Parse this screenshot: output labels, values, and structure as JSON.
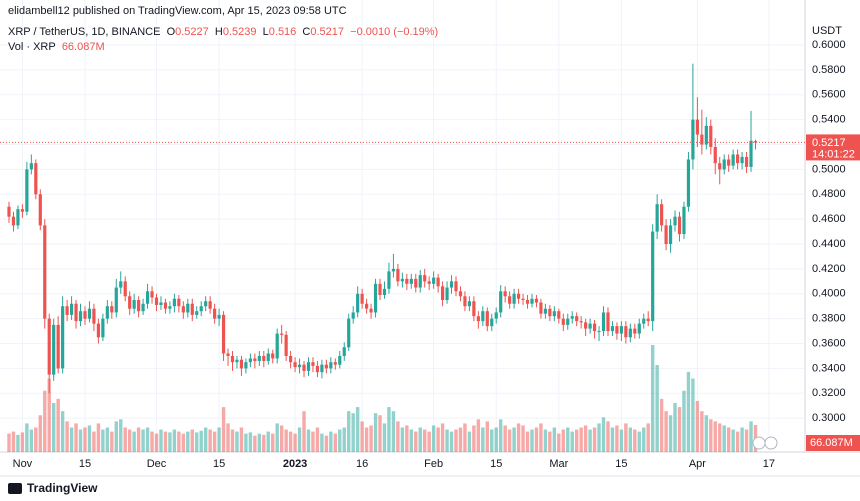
{
  "header": {
    "publisher": "elidambell12 published on TradingView.com, Apr 15, 2023 09:58 UTC",
    "symbol": "XRP / TetherUS, 1D, BINANCE",
    "ohlc_labels": [
      "O",
      "H",
      "L",
      "C"
    ],
    "change": "−0.0010 (−0.19%)",
    "volume_title": "Vol · XRP",
    "volume_label": "66.087M",
    "currency": "USDT",
    "countdown": "14:01:22",
    "brand": "TradingView"
  },
  "chart_data": {
    "type": "candlestick",
    "up_color": "#26a69a",
    "down_color": "#ef5350",
    "grid": true,
    "ylim": [
      0.2728,
      0.6185
    ],
    "yticks": [
      {
        "value": 0.3,
        "label": "0.3000"
      },
      {
        "value": 0.32,
        "label": "0.3200"
      },
      {
        "value": 0.34,
        "label": "0.3400"
      },
      {
        "value": 0.36,
        "label": "0.3600"
      },
      {
        "value": 0.38,
        "label": "0.3800"
      },
      {
        "value": 0.4,
        "label": "0.4000"
      },
      {
        "value": 0.42,
        "label": "0.4200"
      },
      {
        "value": 0.44,
        "label": "0.4400"
      },
      {
        "value": 0.46,
        "label": "0.4600"
      },
      {
        "value": 0.48,
        "label": "0.4800"
      },
      {
        "value": 0.5,
        "label": "0.5000"
      },
      {
        "value": 0.52,
        "label": "0.5200"
      },
      {
        "value": 0.54,
        "label": "0.5400"
      },
      {
        "value": 0.56,
        "label": "0.5600"
      },
      {
        "value": 0.58,
        "label": "0.5800"
      },
      {
        "value": 0.6,
        "label": "0.6000"
      }
    ],
    "xticks": [
      {
        "value": 3,
        "label": "Nov"
      },
      {
        "value": 17,
        "label": "15"
      },
      {
        "value": 33,
        "label": "Dec"
      },
      {
        "value": 47,
        "label": "15"
      },
      {
        "value": 64,
        "label": "2023"
      },
      {
        "value": 79,
        "label": "16"
      },
      {
        "value": 95,
        "label": "Feb"
      },
      {
        "value": 109,
        "label": "15"
      },
      {
        "value": 123,
        "label": "Mar"
      },
      {
        "value": 137,
        "label": "15"
      },
      {
        "value": 154,
        "label": "Apr"
      },
      {
        "value": 170,
        "label": "17"
      }
    ],
    "open": [
      0.47,
      0.462,
      0.455,
      0.468,
      0.466,
      0.5,
      0.505,
      0.48,
      0.455,
      0.38,
      0.335,
      0.375,
      0.34,
      0.39,
      0.383,
      0.392,
      0.378,
      0.386,
      0.38,
      0.388,
      0.376,
      0.365,
      0.38,
      0.39,
      0.385,
      0.405,
      0.41,
      0.398,
      0.388,
      0.395,
      0.386,
      0.392,
      0.402,
      0.397,
      0.391,
      0.393,
      0.388,
      0.39,
      0.396,
      0.39,
      0.385,
      0.392,
      0.383,
      0.386,
      0.39,
      0.394,
      0.388,
      0.38,
      0.383,
      0.352,
      0.35,
      0.345,
      0.347,
      0.34,
      0.345,
      0.348,
      0.346,
      0.35,
      0.346,
      0.352,
      0.348,
      0.368,
      0.367,
      0.35,
      0.345,
      0.341,
      0.343,
      0.338,
      0.345,
      0.342,
      0.337,
      0.343,
      0.34,
      0.345,
      0.343,
      0.35,
      0.357,
      0.38,
      0.385,
      0.4,
      0.392,
      0.388,
      0.385,
      0.408,
      0.399,
      0.404,
      0.418,
      0.42,
      0.41,
      0.412,
      0.408,
      0.412,
      0.405,
      0.415,
      0.41,
      0.408,
      0.413,
      0.406,
      0.395,
      0.405,
      0.41,
      0.402,
      0.398,
      0.39,
      0.394,
      0.382,
      0.378,
      0.386,
      0.374,
      0.38,
      0.385,
      0.402,
      0.398,
      0.392,
      0.4,
      0.396,
      0.395,
      0.392,
      0.396,
      0.393,
      0.384,
      0.388,
      0.382,
      0.386,
      0.38,
      0.375,
      0.38,
      0.382,
      0.378,
      0.377,
      0.372,
      0.376,
      0.37,
      0.37,
      0.385,
      0.37,
      0.374,
      0.368,
      0.374,
      0.365,
      0.372,
      0.368,
      0.376,
      0.38,
      0.378,
      0.45,
      0.472,
      0.455,
      0.44,
      0.455,
      0.462,
      0.448,
      0.47,
      0.508,
      0.54,
      0.528,
      0.52,
      0.535,
      0.518,
      0.505,
      0.5,
      0.508,
      0.503,
      0.512,
      0.505,
      0.51,
      0.502,
      0.5227
    ],
    "high": [
      0.474,
      0.466,
      0.471,
      0.472,
      0.506,
      0.512,
      0.508,
      0.484,
      0.46,
      0.384,
      0.38,
      0.382,
      0.398,
      0.395,
      0.398,
      0.395,
      0.392,
      0.39,
      0.394,
      0.392,
      0.38,
      0.384,
      0.395,
      0.394,
      0.412,
      0.418,
      0.414,
      0.402,
      0.4,
      0.398,
      0.396,
      0.408,
      0.406,
      0.4,
      0.398,
      0.396,
      0.394,
      0.4,
      0.399,
      0.394,
      0.396,
      0.396,
      0.39,
      0.394,
      0.398,
      0.398,
      0.392,
      0.388,
      0.386,
      0.356,
      0.354,
      0.35,
      0.35,
      0.348,
      0.352,
      0.352,
      0.354,
      0.354,
      0.356,
      0.355,
      0.372,
      0.375,
      0.37,
      0.354,
      0.349,
      0.348,
      0.346,
      0.349,
      0.349,
      0.346,
      0.347,
      0.347,
      0.349,
      0.348,
      0.354,
      0.361,
      0.384,
      0.39,
      0.406,
      0.404,
      0.396,
      0.392,
      0.412,
      0.412,
      0.41,
      0.425,
      0.432,
      0.424,
      0.417,
      0.416,
      0.416,
      0.416,
      0.419,
      0.42,
      0.414,
      0.418,
      0.416,
      0.41,
      0.41,
      0.415,
      0.414,
      0.406,
      0.402,
      0.398,
      0.398,
      0.386,
      0.39,
      0.389,
      0.384,
      0.389,
      0.407,
      0.406,
      0.402,
      0.404,
      0.404,
      0.4,
      0.399,
      0.4,
      0.399,
      0.396,
      0.392,
      0.391,
      0.39,
      0.388,
      0.384,
      0.384,
      0.386,
      0.385,
      0.382,
      0.38,
      0.38,
      0.379,
      0.374,
      0.39,
      0.389,
      0.378,
      0.377,
      0.378,
      0.378,
      0.376,
      0.376,
      0.38,
      0.384,
      0.386,
      0.456,
      0.48,
      0.476,
      0.46,
      0.46,
      0.467,
      0.466,
      0.474,
      0.514,
      0.585,
      0.558,
      0.548,
      0.542,
      0.54,
      0.525,
      0.51,
      0.512,
      0.512,
      0.516,
      0.516,
      0.514,
      0.514,
      0.547,
      0.5239
    ],
    "low": [
      0.457,
      0.45,
      0.452,
      0.461,
      0.463,
      0.496,
      0.476,
      0.451,
      0.372,
      0.32,
      0.33,
      0.336,
      0.336,
      0.378,
      0.379,
      0.372,
      0.374,
      0.375,
      0.377,
      0.37,
      0.36,
      0.362,
      0.376,
      0.38,
      0.381,
      0.4,
      0.394,
      0.383,
      0.384,
      0.381,
      0.383,
      0.388,
      0.392,
      0.386,
      0.387,
      0.384,
      0.384,
      0.385,
      0.385,
      0.38,
      0.381,
      0.378,
      0.38,
      0.382,
      0.386,
      0.384,
      0.376,
      0.374,
      0.346,
      0.342,
      0.338,
      0.34,
      0.334,
      0.336,
      0.341,
      0.34,
      0.342,
      0.341,
      0.343,
      0.344,
      0.344,
      0.36,
      0.346,
      0.34,
      0.337,
      0.336,
      0.333,
      0.334,
      0.337,
      0.333,
      0.332,
      0.336,
      0.336,
      0.339,
      0.34,
      0.346,
      0.354,
      0.376,
      0.381,
      0.388,
      0.384,
      0.38,
      0.381,
      0.395,
      0.396,
      0.4,
      0.413,
      0.406,
      0.405,
      0.403,
      0.404,
      0.401,
      0.401,
      0.405,
      0.403,
      0.404,
      0.401,
      0.39,
      0.392,
      0.4,
      0.398,
      0.394,
      0.386,
      0.386,
      0.378,
      0.372,
      0.374,
      0.37,
      0.37,
      0.376,
      0.381,
      0.393,
      0.388,
      0.388,
      0.392,
      0.391,
      0.388,
      0.389,
      0.389,
      0.38,
      0.38,
      0.378,
      0.378,
      0.376,
      0.37,
      0.371,
      0.376,
      0.374,
      0.372,
      0.366,
      0.368,
      0.364,
      0.362,
      0.366,
      0.366,
      0.366,
      0.363,
      0.362,
      0.36,
      0.361,
      0.364,
      0.364,
      0.372,
      0.374,
      0.37,
      0.444,
      0.45,
      0.435,
      0.433,
      0.45,
      0.442,
      0.444,
      0.466,
      0.5,
      0.518,
      0.512,
      0.516,
      0.512,
      0.496,
      0.488,
      0.496,
      0.498,
      0.5,
      0.5,
      0.5,
      0.497,
      0.498,
      0.516
    ],
    "close": [
      0.462,
      0.455,
      0.468,
      0.466,
      0.5,
      0.505,
      0.48,
      0.455,
      0.38,
      0.335,
      0.375,
      0.34,
      0.39,
      0.383,
      0.392,
      0.378,
      0.386,
      0.38,
      0.388,
      0.376,
      0.365,
      0.38,
      0.39,
      0.385,
      0.405,
      0.41,
      0.398,
      0.388,
      0.395,
      0.386,
      0.392,
      0.402,
      0.397,
      0.391,
      0.393,
      0.388,
      0.39,
      0.396,
      0.39,
      0.385,
      0.392,
      0.383,
      0.386,
      0.39,
      0.394,
      0.388,
      0.38,
      0.383,
      0.352,
      0.35,
      0.345,
      0.347,
      0.34,
      0.345,
      0.348,
      0.346,
      0.35,
      0.346,
      0.352,
      0.348,
      0.368,
      0.367,
      0.35,
      0.345,
      0.341,
      0.343,
      0.338,
      0.345,
      0.342,
      0.337,
      0.343,
      0.34,
      0.345,
      0.343,
      0.35,
      0.357,
      0.38,
      0.385,
      0.4,
      0.392,
      0.388,
      0.385,
      0.408,
      0.399,
      0.404,
      0.418,
      0.42,
      0.41,
      0.412,
      0.408,
      0.412,
      0.405,
      0.415,
      0.41,
      0.408,
      0.413,
      0.406,
      0.395,
      0.405,
      0.41,
      0.402,
      0.398,
      0.39,
      0.394,
      0.382,
      0.378,
      0.386,
      0.374,
      0.38,
      0.385,
      0.402,
      0.398,
      0.392,
      0.4,
      0.396,
      0.395,
      0.392,
      0.396,
      0.393,
      0.384,
      0.388,
      0.382,
      0.386,
      0.38,
      0.375,
      0.38,
      0.382,
      0.378,
      0.377,
      0.372,
      0.376,
      0.37,
      0.37,
      0.385,
      0.37,
      0.374,
      0.368,
      0.374,
      0.365,
      0.372,
      0.368,
      0.376,
      0.38,
      0.378,
      0.45,
      0.472,
      0.455,
      0.44,
      0.455,
      0.462,
      0.448,
      0.47,
      0.508,
      0.54,
      0.528,
      0.52,
      0.535,
      0.518,
      0.505,
      0.5,
      0.508,
      0.503,
      0.512,
      0.505,
      0.51,
      0.502,
      0.523,
      0.5217
    ],
    "volume": [
      45,
      50,
      42,
      48,
      70,
      55,
      60,
      90,
      150,
      180,
      120,
      130,
      100,
      75,
      60,
      70,
      55,
      60,
      65,
      50,
      70,
      55,
      60,
      50,
      75,
      80,
      60,
      55,
      50,
      60,
      55,
      60,
      50,
      45,
      55,
      50,
      48,
      55,
      50,
      45,
      50,
      55,
      48,
      52,
      60,
      55,
      50,
      60,
      110,
      70,
      55,
      50,
      60,
      45,
      48,
      40,
      45,
      42,
      50,
      45,
      70,
      65,
      55,
      50,
      45,
      60,
      100,
      55,
      50,
      60,
      45,
      40,
      50,
      45,
      55,
      60,
      100,
      95,
      110,
      75,
      60,
      65,
      95,
      90,
      70,
      110,
      100,
      75,
      60,
      65,
      55,
      50,
      60,
      55,
      50,
      65,
      60,
      70,
      55,
      50,
      55,
      60,
      70,
      50,
      65,
      80,
      60,
      75,
      55,
      60,
      80,
      65,
      55,
      60,
      70,
      65,
      50,
      55,
      60,
      70,
      55,
      50,
      60,
      45,
      55,
      60,
      50,
      55,
      60,
      65,
      55,
      60,
      70,
      85,
      75,
      60,
      65,
      55,
      70,
      60,
      55,
      50,
      60,
      70,
      262,
      213,
      130,
      100,
      90,
      120,
      110,
      150,
      196,
      180,
      125,
      100,
      90,
      80,
      75,
      70,
      65,
      60,
      55,
      50,
      60,
      55,
      75,
      66.087
    ]
  }
}
